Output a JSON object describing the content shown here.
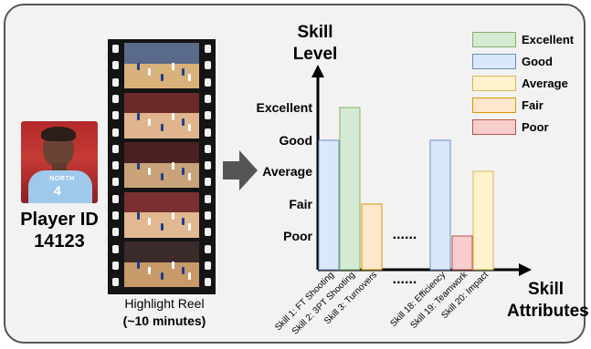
{
  "player": {
    "label": "Player ID",
    "id": "14123",
    "jersey_text": "NORTH",
    "jersey_number": "4"
  },
  "reel": {
    "caption_line1": "Highlight Reel",
    "caption_line2": "(~10 minutes)"
  },
  "chart_data": {
    "type": "bar",
    "ylabel": "Skill Level",
    "xlabel": "Skill Attributes",
    "levels": [
      "Poor",
      "Fair",
      "Average",
      "Good",
      "Excellent"
    ],
    "categories": [
      "Skill 1: FT Shooting",
      "Skill 2: 3PT Shooting",
      "Skill 3: Turnovers",
      "Skill 18: Efficiency",
      "Skill 19: Teamwork",
      "Skill 20: Impact"
    ],
    "values": [
      "Good",
      "Excellent",
      "Fair",
      "Good",
      "Poor",
      "Average"
    ],
    "ellipsis": "......",
    "legend": [
      {
        "label": "Excellent",
        "fill": "#d5ead2",
        "stroke": "#82b366"
      },
      {
        "label": "Good",
        "fill": "#dae8fc",
        "stroke": "#6c8ebf"
      },
      {
        "label": "Average",
        "fill": "#fff2cc",
        "stroke": "#d6b656"
      },
      {
        "label": "Fair",
        "fill": "#ffe6cc",
        "stroke": "#d79b00"
      },
      {
        "label": "Poor",
        "fill": "#f8cecc",
        "stroke": "#b85450"
      }
    ]
  }
}
